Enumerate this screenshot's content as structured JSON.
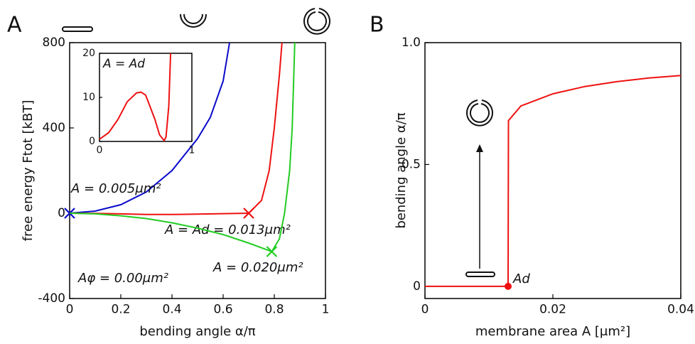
{
  "figure_labels": [
    "A",
    "B"
  ],
  "chart_data": [
    {
      "type": "line",
      "xlabel": "bending angle α/π",
      "ylabel": "free energy Ftot [kBT]",
      "xlim": [
        0,
        1
      ],
      "ylim": [
        -400,
        800
      ],
      "xticks": [
        0,
        0.2,
        0.4,
        0.6,
        0.8,
        1
      ],
      "yticks": [
        -400,
        0,
        400,
        800
      ],
      "annotation": "Aφ = 0.00μm²",
      "series": [
        {
          "name": "A = 0.005μm²",
          "color": "#0a0acc",
          "x": [
            0,
            0.1,
            0.2,
            0.3,
            0.4,
            0.5,
            0.55,
            0.6,
            0.625
          ],
          "values": [
            0,
            10,
            40,
            100,
            200,
            350,
            450,
            620,
            800
          ],
          "marker_x": 0,
          "marker_y": 0
        },
        {
          "name": "A = Ad = 0.013μm²",
          "color": "#ee1111",
          "x": [
            0,
            0.1,
            0.2,
            0.3,
            0.4,
            0.5,
            0.6,
            0.7,
            0.75,
            0.78,
            0.8,
            0.82,
            0.83
          ],
          "values": [
            0,
            -1,
            -3,
            -6,
            -6,
            -4,
            -2,
            0,
            60,
            200,
            400,
            650,
            800
          ],
          "marker_x": 0.7,
          "marker_y": 0
        },
        {
          "name": "A = 0.020μm²",
          "color": "#22cc22",
          "x": [
            0,
            0.1,
            0.2,
            0.3,
            0.4,
            0.5,
            0.6,
            0.7,
            0.79,
            0.82,
            0.84,
            0.86,
            0.87,
            0.88
          ],
          "values": [
            0,
            -3,
            -12,
            -25,
            -45,
            -70,
            -100,
            -140,
            -180,
            -120,
            0,
            200,
            400,
            800
          ],
          "marker_x": 0.79,
          "marker_y": -180
        }
      ]
    },
    {
      "type": "line",
      "title": "A = Ad",
      "xlim": [
        0,
        1
      ],
      "ylim": [
        0,
        20
      ],
      "xticks": [
        0,
        1
      ],
      "yticks": [
        0,
        10,
        20
      ],
      "series": [
        {
          "color": "#ee1111",
          "x": [
            0,
            0.1,
            0.2,
            0.3,
            0.4,
            0.45,
            0.5,
            0.6,
            0.65,
            0.7,
            0.72,
            0.75,
            0.77
          ],
          "values": [
            0.5,
            2,
            5,
            9,
            11,
            11.2,
            10.5,
            5,
            1.5,
            0.2,
            1,
            8,
            20
          ]
        }
      ]
    },
    {
      "type": "line",
      "xlabel": "membrane area A [μm²]",
      "ylabel": "bending angle α/π",
      "xlim": [
        0,
        0.04
      ],
      "ylim": [
        -0.05,
        1.0
      ],
      "xticks": [
        0,
        0.02,
        0.04
      ],
      "yticks": [
        0,
        0.5,
        {
          "value": 1.0,
          "label": "1.0"
        }
      ],
      "point_label": "Ad",
      "point_x": 0.013,
      "point_y": 0,
      "series": [
        {
          "color": "#ee1111",
          "x": [
            0,
            0.005,
            0.01,
            0.013,
            0.01305,
            0.015,
            0.02,
            0.025,
            0.03,
            0.035,
            0.04
          ],
          "values": [
            0,
            0,
            0,
            0,
            0.68,
            0.74,
            0.79,
            0.82,
            0.84,
            0.855,
            0.865
          ]
        }
      ]
    }
  ]
}
